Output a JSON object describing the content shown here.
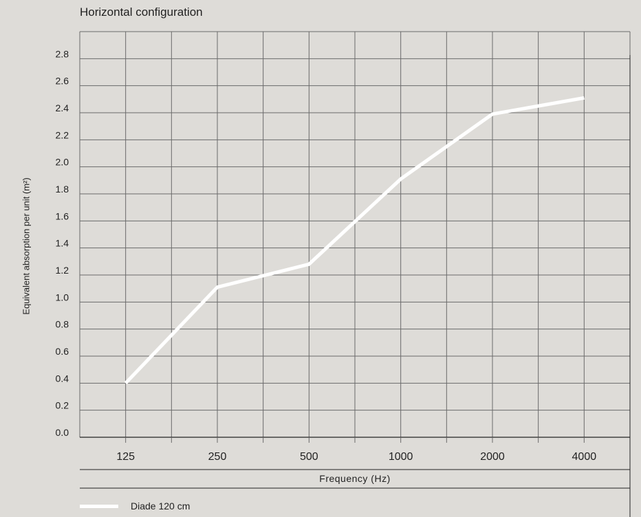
{
  "chart_data": {
    "type": "line",
    "title": "Horizontal configuration",
    "ylabel": "Equivalent absorption per unit (m²)",
    "xlabel": "Frequency (Hz)",
    "categories": [
      "125",
      "250",
      "500",
      "1000",
      "2000",
      "4000"
    ],
    "yticks": [
      "0.0",
      "0.2",
      "0.4",
      "0.6",
      "0.8",
      "1.0",
      "1.2",
      "1.4",
      "1.6",
      "1.8",
      "2.0",
      "2.2",
      "2.4",
      "2.6",
      "2.8"
    ],
    "ylim": [
      0,
      3.0
    ],
    "grid": true,
    "legend_position": "bottom-left",
    "series": [
      {
        "name": "Diade 120 cm",
        "values": [
          0.4,
          1.11,
          1.28,
          1.91,
          2.39,
          2.51
        ],
        "color": "#ffffff"
      }
    ]
  }
}
